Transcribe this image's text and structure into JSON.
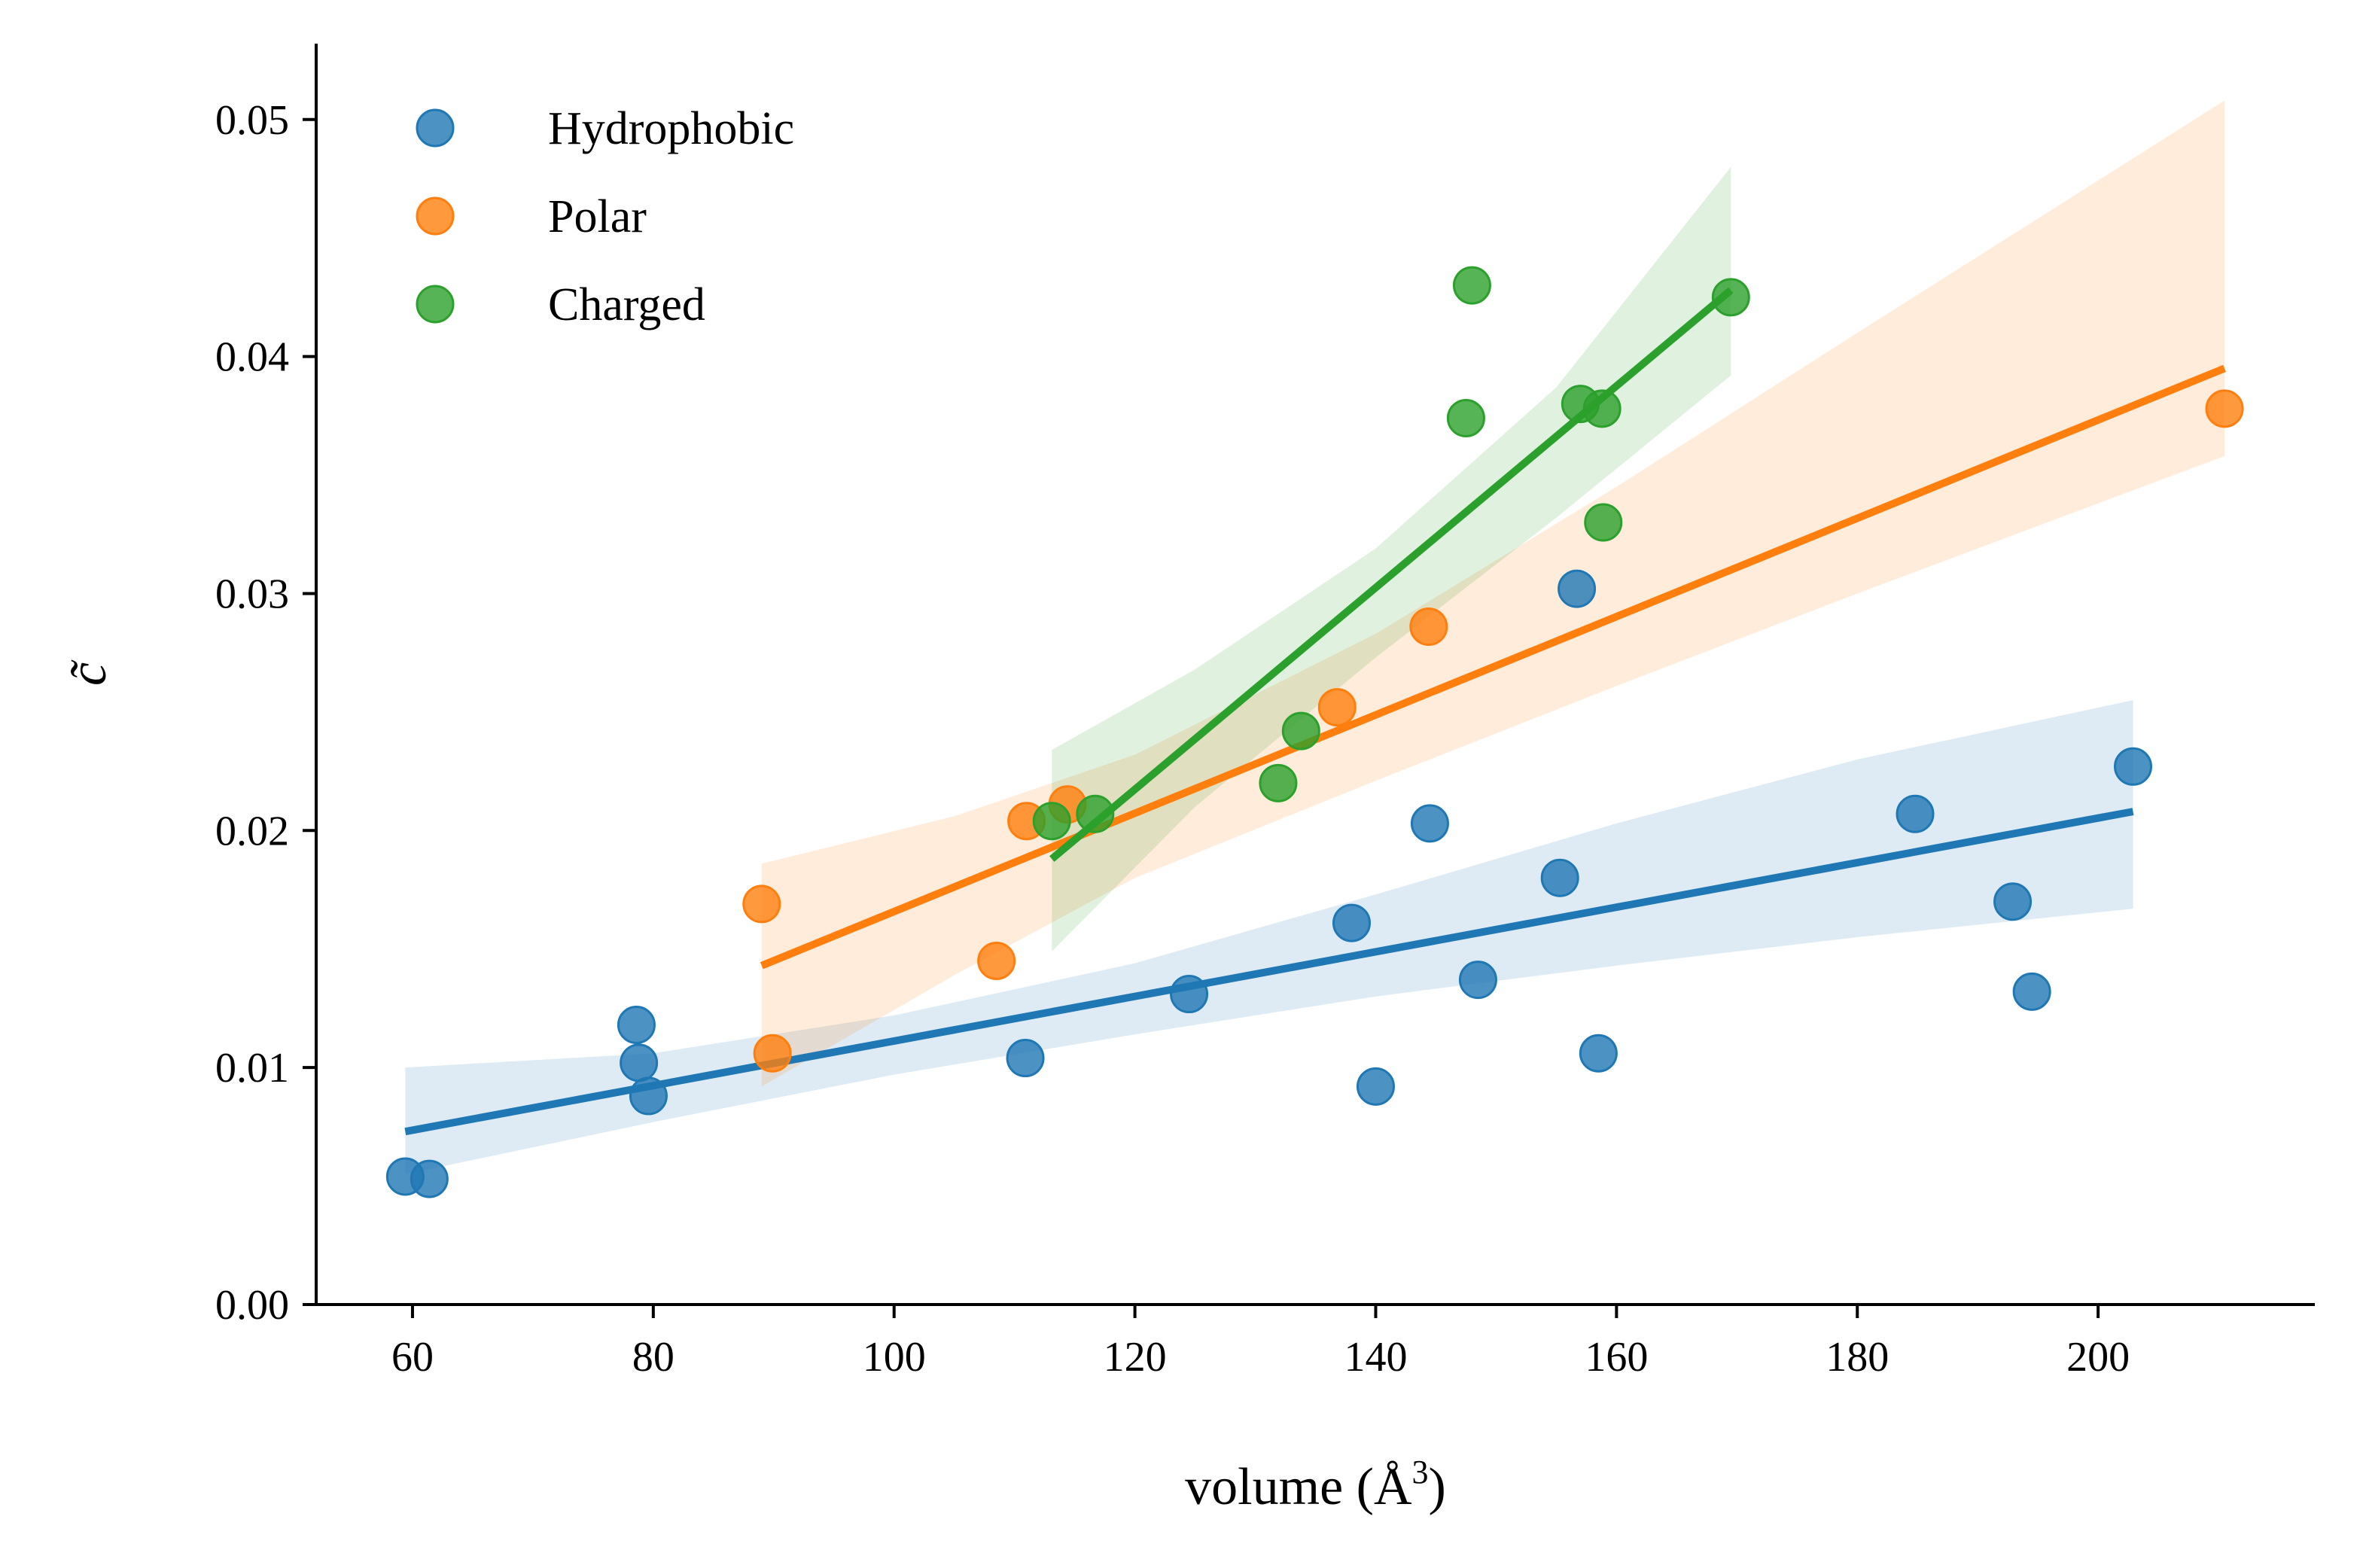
{
  "chart_data": {
    "type": "scatter",
    "title": "",
    "xlabel": "volume (Å",
    "xlabel_sup": "3",
    "xlabel_end": ")",
    "ylabel": "c̃",
    "xlim": [
      52,
      218
    ],
    "ylim": [
      0,
      0.0532
    ],
    "x_ticks": [
      60,
      80,
      100,
      120,
      140,
      160,
      180,
      200
    ],
    "y_ticks": [
      0.0,
      0.01,
      0.02,
      0.03,
      0.04,
      0.05
    ],
    "y_tick_labels": [
      "0.00",
      "0.01",
      "0.02",
      "0.03",
      "0.04",
      "0.05"
    ],
    "legend_position": "top-left",
    "grid": false,
    "series": [
      {
        "name": "Hydrophobic",
        "color": "#1f77b4",
        "points": [
          [
            59.4,
            0.0054
          ],
          [
            61.4,
            0.0053
          ],
          [
            78.6,
            0.0118
          ],
          [
            78.8,
            0.0102
          ],
          [
            79.6,
            0.0088
          ],
          [
            110.9,
            0.0104
          ],
          [
            124.5,
            0.0131
          ],
          [
            138.0,
            0.0161
          ],
          [
            140.0,
            0.0092
          ],
          [
            144.5,
            0.0203
          ],
          [
            148.5,
            0.0137
          ],
          [
            155.3,
            0.018
          ],
          [
            156.7,
            0.0302
          ],
          [
            158.5,
            0.0106
          ],
          [
            184.8,
            0.0207
          ],
          [
            192.9,
            0.017
          ],
          [
            194.5,
            0.0132
          ],
          [
            202.9,
            0.0227
          ]
        ],
        "fit": [
          [
            59.4,
            0.0073
          ],
          [
            202.9,
            0.0208
          ]
        ],
        "band_upper": [
          [
            59.4,
            0.01
          ],
          [
            80,
            0.0106
          ],
          [
            100,
            0.0122
          ],
          [
            120,
            0.0144
          ],
          [
            140,
            0.0173
          ],
          [
            160,
            0.0203
          ],
          [
            180,
            0.023
          ],
          [
            202.9,
            0.0255
          ]
        ],
        "band_lower": [
          [
            59.4,
            0.0055
          ],
          [
            80,
            0.0077
          ],
          [
            100,
            0.0097
          ],
          [
            120,
            0.0114
          ],
          [
            140,
            0.013
          ],
          [
            160,
            0.0143
          ],
          [
            180,
            0.0155
          ],
          [
            202.9,
            0.0167
          ]
        ]
      },
      {
        "name": "Polar",
        "color": "#ff7f0e",
        "points": [
          [
            89.0,
            0.0169
          ],
          [
            89.9,
            0.0106
          ],
          [
            108.5,
            0.0145
          ],
          [
            111.0,
            0.0204
          ],
          [
            114.4,
            0.0211
          ],
          [
            136.8,
            0.0252
          ],
          [
            144.4,
            0.0286
          ],
          [
            210.5,
            0.0378
          ]
        ],
        "fit": [
          [
            89.0,
            0.0143
          ],
          [
            210.5,
            0.0395
          ]
        ],
        "band_upper": [
          [
            89.0,
            0.0186
          ],
          [
            105,
            0.0206
          ],
          [
            120,
            0.0232
          ],
          [
            140,
            0.0283
          ],
          [
            160,
            0.0345
          ],
          [
            180,
            0.041
          ],
          [
            210.5,
            0.0508
          ]
        ],
        "band_lower": [
          [
            89.0,
            0.0092
          ],
          [
            105,
            0.0139
          ],
          [
            120,
            0.018
          ],
          [
            140,
            0.0221
          ],
          [
            160,
            0.0261
          ],
          [
            180,
            0.03
          ],
          [
            210.5,
            0.0358
          ]
        ]
      },
      {
        "name": "Charged",
        "color": "#2ca02c",
        "points": [
          [
            113.1,
            0.0204
          ],
          [
            116.7,
            0.0207
          ],
          [
            131.9,
            0.022
          ],
          [
            133.8,
            0.0242
          ],
          [
            147.5,
            0.0374
          ],
          [
            148.0,
            0.043
          ],
          [
            157.0,
            0.038
          ],
          [
            158.8,
            0.0378
          ],
          [
            158.9,
            0.033
          ],
          [
            169.5,
            0.0425
          ]
        ],
        "fit": [
          [
            113.1,
            0.0188
          ],
          [
            169.5,
            0.0428
          ]
        ],
        "band_upper": [
          [
            113.1,
            0.0234
          ],
          [
            125,
            0.0268
          ],
          [
            140,
            0.0319
          ],
          [
            155,
            0.0387
          ],
          [
            169.5,
            0.048
          ]
        ],
        "band_lower": [
          [
            113.1,
            0.0149
          ],
          [
            125,
            0.021
          ],
          [
            140,
            0.0273
          ],
          [
            155,
            0.0332
          ],
          [
            169.5,
            0.0392
          ]
        ]
      }
    ]
  }
}
